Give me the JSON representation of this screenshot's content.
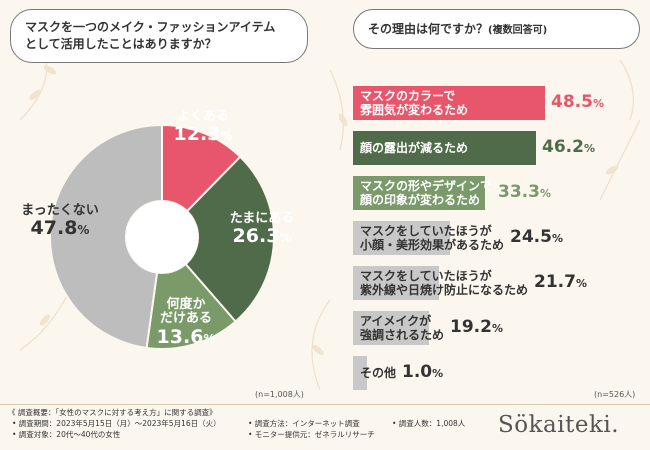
{
  "question1": {
    "line1": "マスクを一つのメイク・ファッションアイテム",
    "line2": "として活用したことはありますか？"
  },
  "question2": {
    "main": "その理由は何ですか？",
    "note": "(複数回答可)"
  },
  "chart_data": [
    {
      "type": "pie",
      "title": "マスクを一つのメイク・ファッションアイテムとして活用したことはありますか？",
      "slices": [
        {
          "label": "よくある",
          "label_lines": [
            "よくある"
          ],
          "value": 12.3,
          "color": "#e8566b"
        },
        {
          "label": "たまにある",
          "label_lines": [
            "たまにある"
          ],
          "value": 26.3,
          "color": "#4f6b49"
        },
        {
          "label": "何度かだけある",
          "label_lines": [
            "何度か",
            "だけある"
          ],
          "value": 13.6,
          "color": "#7a9a6a"
        },
        {
          "label": "まったくない",
          "label_lines": [
            "まったくない"
          ],
          "value": 47.8,
          "color": "#bdbdbd"
        }
      ],
      "start_angle_deg": 0,
      "direction": "clockwise",
      "note": "(n=1,008人)"
    },
    {
      "type": "bar",
      "orientation": "horizontal",
      "title": "その理由は何ですか？(複数回答可)",
      "categories": [
        "マスクのカラーで雰囲気が変わるため",
        "顔の露出が減るため",
        "マスクの形やデザインで顔の印象が変わるため",
        "マスクをしていたほうが小顔・美形効果があるため",
        "マスクをしていたほうが紫外線や日焼け防止になるため",
        "アイメイクが強調されるため",
        "その他"
      ],
      "label_lines": [
        [
          "マスクのカラーで",
          "雰囲気が変わるため"
        ],
        [
          "顔の露出が減るため"
        ],
        [
          "マスクの形やデザインで",
          "顔の印象が変わるため"
        ],
        [
          "マスクをしていたほうが",
          "小顔・美形効果があるため"
        ],
        [
          "マスクをしていたほうが",
          "紫外線や日焼け防止になるため"
        ],
        [
          "アイメイクが",
          "強調されるため"
        ],
        [
          "その他"
        ]
      ],
      "values": [
        48.5,
        46.2,
        33.3,
        24.5,
        21.7,
        19.2,
        1.0
      ],
      "colors": [
        "#e8566b",
        "#4f6b49",
        "#7a9a6a",
        "#c8c8c8",
        "#c8c8c8",
        "#c8c8c8",
        "#c8c8c8"
      ],
      "text_colors": [
        "#ffffff",
        "#ffffff",
        "#ffffff",
        "#333333",
        "#333333",
        "#333333",
        "#333333"
      ],
      "value_colors": [
        "#e8566b",
        "#4f6b49",
        "#7a9a6a",
        "#333333",
        "#333333",
        "#333333",
        "#333333"
      ],
      "unit": "%",
      "xlim": [
        0,
        48.5
      ],
      "note": "(n=526人)"
    }
  ],
  "footer": {
    "summary": "《 調査概要：「女性のマスクに対する考え方」に関する調査》",
    "period": "• 調査期間：2023年5月15日（月）〜2023年5月16日（火）",
    "method": "• 調査方法：インターネット調査",
    "count": "• 調査人数：1,008人",
    "target": "• 調査対象：20代〜40代の女性",
    "provider": "• モニター提供元：ゼネラルリサーチ"
  },
  "logo": "Sökaiteki."
}
